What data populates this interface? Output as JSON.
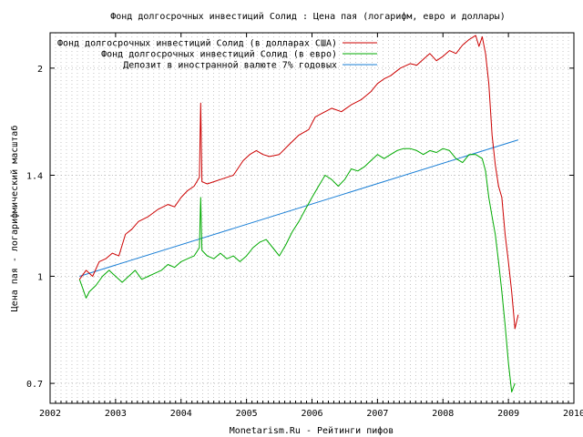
{
  "chart_data": {
    "type": "line",
    "title": "Фонд долгосрочных инвестиций Солид : Цена пая (логарифм, евро и доллары)",
    "xlabel": "Monetarism.Ru - Рейтинги пифов",
    "ylabel": "Цена пая - логарифмический масштаб",
    "y_scale": "log",
    "xlim": [
      2002.0,
      2010.0
    ],
    "ylim": [
      0.655,
      2.25
    ],
    "x_ticks": [
      2002,
      2003,
      2004,
      2005,
      2006,
      2007,
      2008,
      2009,
      2010
    ],
    "x_tick_labels": [
      "2002",
      "2003",
      "2004",
      "2005",
      "2006",
      "2007",
      "2008",
      "2009",
      "2010"
    ],
    "y_ticks": [
      0.7,
      1.0,
      1.4,
      2.0
    ],
    "y_tick_labels": [
      "0.7",
      "1",
      "1.4",
      "2"
    ],
    "grid": true,
    "legend_position": "top-left",
    "series": [
      {
        "name": "Фонд долгосрочных инвестиций Солид (в долларах США)",
        "color": "#cc0000",
        "x": [
          2002.45,
          2002.55,
          2002.65,
          2002.75,
          2002.85,
          2002.95,
          2003.05,
          2003.15,
          2003.25,
          2003.35,
          2003.5,
          2003.65,
          2003.8,
          2003.9,
          2004.0,
          2004.1,
          2004.2,
          2004.28,
          2004.3,
          2004.32,
          2004.4,
          2004.5,
          2004.6,
          2004.8,
          2004.95,
          2005.05,
          2005.15,
          2005.25,
          2005.35,
          2005.5,
          2005.65,
          2005.8,
          2005.95,
          2006.05,
          2006.15,
          2006.3,
          2006.45,
          2006.6,
          2006.75,
          2006.9,
          2007.0,
          2007.1,
          2007.2,
          2007.35,
          2007.5,
          2007.6,
          2007.7,
          2007.8,
          2007.9,
          2008.0,
          2008.1,
          2008.2,
          2008.3,
          2008.4,
          2008.5,
          2008.55,
          2008.6,
          2008.65,
          2008.7,
          2008.75,
          2008.8,
          2008.85,
          2008.9,
          2008.95,
          2009.0,
          2009.05,
          2009.1,
          2009.15
        ],
        "values": [
          0.99,
          1.02,
          1.0,
          1.05,
          1.06,
          1.08,
          1.07,
          1.15,
          1.17,
          1.2,
          1.22,
          1.25,
          1.27,
          1.26,
          1.3,
          1.33,
          1.35,
          1.39,
          1.78,
          1.37,
          1.36,
          1.37,
          1.38,
          1.4,
          1.47,
          1.5,
          1.52,
          1.5,
          1.49,
          1.5,
          1.55,
          1.6,
          1.63,
          1.7,
          1.72,
          1.75,
          1.73,
          1.77,
          1.8,
          1.85,
          1.9,
          1.93,
          1.95,
          2.0,
          2.03,
          2.02,
          2.06,
          2.1,
          2.05,
          2.08,
          2.12,
          2.1,
          2.16,
          2.2,
          2.23,
          2.15,
          2.22,
          2.1,
          1.9,
          1.6,
          1.45,
          1.35,
          1.3,
          1.15,
          1.05,
          0.95,
          0.84,
          0.88
        ],
        "label": "Фонд долгосрочных инвестиций Солид (в долларах США)"
      },
      {
        "name": "Фонд долгосрочных инвестиций Солид (в евро)",
        "color": "#00aa00",
        "x": [
          2002.45,
          2002.5,
          2002.55,
          2002.6,
          2002.7,
          2002.8,
          2002.9,
          2003.0,
          2003.1,
          2003.2,
          2003.3,
          2003.4,
          2003.5,
          2003.6,
          2003.7,
          2003.8,
          2003.9,
          2004.0,
          2004.1,
          2004.2,
          2004.28,
          2004.3,
          2004.32,
          2004.4,
          2004.5,
          2004.6,
          2004.7,
          2004.8,
          2004.9,
          2005.0,
          2005.1,
          2005.2,
          2005.3,
          2005.4,
          2005.5,
          2005.6,
          2005.7,
          2005.8,
          2005.9,
          2006.0,
          2006.1,
          2006.2,
          2006.3,
          2006.4,
          2006.5,
          2006.6,
          2006.7,
          2006.8,
          2006.9,
          2007.0,
          2007.1,
          2007.2,
          2007.3,
          2007.4,
          2007.5,
          2007.6,
          2007.7,
          2007.8,
          2007.9,
          2008.0,
          2008.1,
          2008.2,
          2008.3,
          2008.4,
          2008.5,
          2008.6,
          2008.65,
          2008.7,
          2008.75,
          2008.8,
          2008.85,
          2008.9,
          2008.95,
          2009.0,
          2009.05,
          2009.1
        ],
        "values": [
          0.99,
          0.96,
          0.93,
          0.95,
          0.97,
          1.0,
          1.02,
          1.0,
          0.98,
          1.0,
          1.02,
          0.99,
          1.0,
          1.01,
          1.02,
          1.04,
          1.03,
          1.05,
          1.06,
          1.07,
          1.1,
          1.3,
          1.09,
          1.07,
          1.06,
          1.08,
          1.06,
          1.07,
          1.05,
          1.07,
          1.1,
          1.12,
          1.13,
          1.1,
          1.07,
          1.11,
          1.16,
          1.2,
          1.25,
          1.3,
          1.35,
          1.4,
          1.38,
          1.35,
          1.38,
          1.43,
          1.42,
          1.44,
          1.47,
          1.5,
          1.48,
          1.5,
          1.52,
          1.53,
          1.53,
          1.52,
          1.5,
          1.52,
          1.51,
          1.53,
          1.52,
          1.48,
          1.46,
          1.5,
          1.5,
          1.48,
          1.42,
          1.3,
          1.22,
          1.15,
          1.05,
          0.95,
          0.85,
          0.75,
          0.68,
          0.7
        ],
        "label": "Фонд долгосрочных инвестиций Солид (в евро)"
      },
      {
        "name": "Депозит в иностранной валюте 7% годовых",
        "color": "#1a7fd6",
        "x": [
          2002.45,
          2009.15
        ],
        "values": [
          1.0,
          1.575
        ],
        "label": "Депозит в иностранной валюте 7% годовых"
      }
    ]
  }
}
